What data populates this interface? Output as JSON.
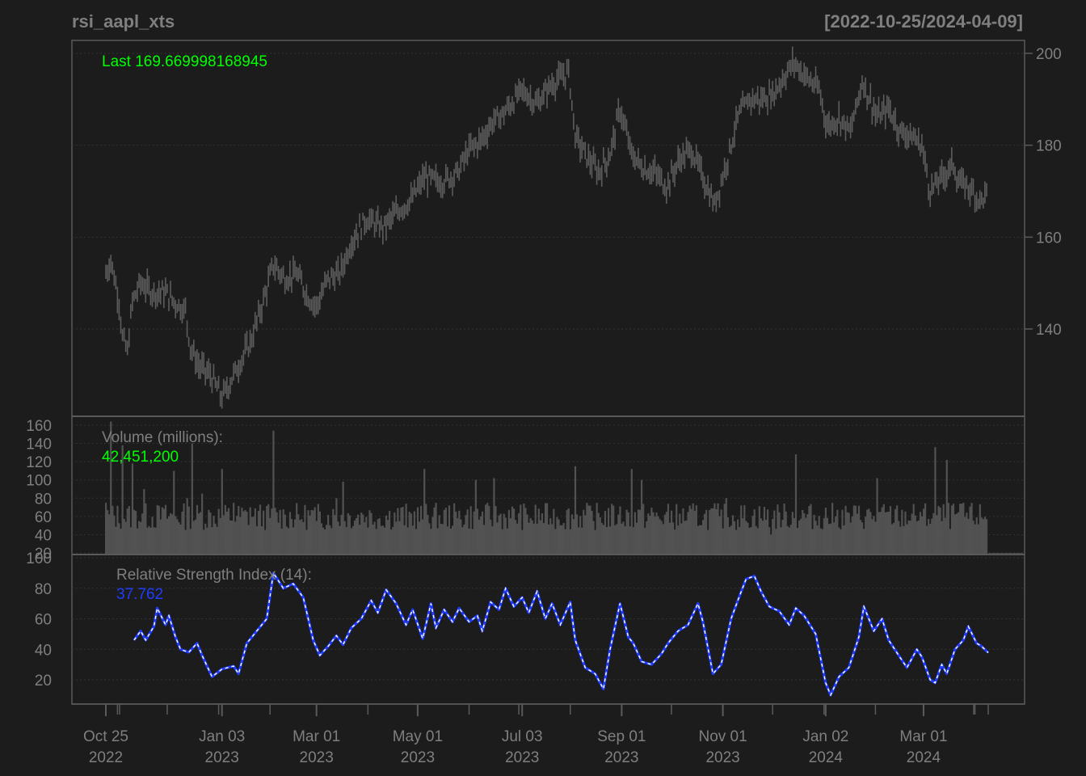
{
  "chart_data": {
    "type": "line",
    "title": "rsi_aapl_xts",
    "date_range": "[2022-10-25/2024-04-09]",
    "x_tick_labels": [
      {
        "month": "Oct 25",
        "year": "2022"
      },
      {
        "month": "Jan 03",
        "year": "2023"
      },
      {
        "month": "Mar 01",
        "year": "2023"
      },
      {
        "month": "May 01",
        "year": "2023"
      },
      {
        "month": "Jul 03",
        "year": "2023"
      },
      {
        "month": "Sep 01",
        "year": "2023"
      },
      {
        "month": "Nov 01",
        "year": "2023"
      },
      {
        "month": "Jan 02",
        "year": "2024"
      },
      {
        "month": "Mar 01",
        "year": "2024"
      }
    ],
    "x_tick_dates": [
      "2022-10-25",
      "2023-01-03",
      "2023-03-01",
      "2023-05-01",
      "2023-07-03",
      "2023-09-01",
      "2023-11-01",
      "2024-01-02",
      "2024-03-01"
    ],
    "panels": [
      {
        "name": "price",
        "type": "candlestick",
        "legend": "Last 169.669998168945",
        "ylim": [
          120,
          202
        ],
        "y_ticks": [
          140,
          160,
          180,
          200
        ],
        "points": [
          [
            "2022-10-25",
            152
          ],
          [
            "2022-10-28",
            155
          ],
          [
            "2022-11-02",
            146
          ],
          [
            "2022-11-04",
            138
          ],
          [
            "2022-11-07",
            135
          ],
          [
            "2022-11-10",
            146
          ],
          [
            "2022-11-15",
            150
          ],
          [
            "2022-11-22",
            148
          ],
          [
            "2022-11-30",
            148
          ],
          [
            "2022-12-05",
            146
          ],
          [
            "2022-12-12",
            144
          ],
          [
            "2022-12-15",
            136
          ],
          [
            "2022-12-20",
            132
          ],
          [
            "2022-12-27",
            130
          ],
          [
            "2023-01-03",
            125
          ],
          [
            "2023-01-10",
            130
          ],
          [
            "2023-01-20",
            137
          ],
          [
            "2023-01-27",
            145
          ],
          [
            "2023-02-03",
            154
          ],
          [
            "2023-02-10",
            151
          ],
          [
            "2023-02-17",
            152
          ],
          [
            "2023-02-24",
            147
          ],
          [
            "2023-03-01",
            145
          ],
          [
            "2023-03-08",
            151
          ],
          [
            "2023-03-15",
            152
          ],
          [
            "2023-03-22",
            159
          ],
          [
            "2023-03-31",
            164
          ],
          [
            "2023-04-10",
            162
          ],
          [
            "2023-04-20",
            166
          ],
          [
            "2023-04-27",
            168
          ],
          [
            "2023-05-05",
            173
          ],
          [
            "2023-05-15",
            172
          ],
          [
            "2023-05-25",
            174
          ],
          [
            "2023-06-01",
            179
          ],
          [
            "2023-06-08",
            181
          ],
          [
            "2023-06-15",
            185
          ],
          [
            "2023-06-22",
            187
          ],
          [
            "2023-07-03",
            192
          ],
          [
            "2023-07-12",
            189
          ],
          [
            "2023-07-20",
            193
          ],
          [
            "2023-07-31",
            196
          ],
          [
            "2023-08-04",
            182
          ],
          [
            "2023-08-10",
            178
          ],
          [
            "2023-08-18",
            174
          ],
          [
            "2023-08-25",
            178
          ],
          [
            "2023-08-31",
            188
          ],
          [
            "2023-09-07",
            178
          ],
          [
            "2023-09-14",
            175
          ],
          [
            "2023-09-21",
            174
          ],
          [
            "2023-09-28",
            171
          ],
          [
            "2023-10-06",
            177
          ],
          [
            "2023-10-13",
            179
          ],
          [
            "2023-10-20",
            173
          ],
          [
            "2023-10-27",
            167
          ],
          [
            "2023-11-03",
            176
          ],
          [
            "2023-11-10",
            186
          ],
          [
            "2023-11-17",
            190
          ],
          [
            "2023-11-24",
            190
          ],
          [
            "2023-12-01",
            191
          ],
          [
            "2023-12-08",
            195
          ],
          [
            "2023-12-14",
            198
          ],
          [
            "2023-12-21",
            195
          ],
          [
            "2023-12-29",
            192
          ],
          [
            "2024-01-03",
            184
          ],
          [
            "2024-01-10",
            186
          ],
          [
            "2024-01-17",
            183
          ],
          [
            "2024-01-24",
            194
          ],
          [
            "2024-01-31",
            188
          ],
          [
            "2024-02-02",
            186
          ],
          [
            "2024-02-09",
            188
          ],
          [
            "2024-02-16",
            183
          ],
          [
            "2024-02-23",
            182
          ],
          [
            "2024-02-29",
            180
          ],
          [
            "2024-03-05",
            170
          ],
          [
            "2024-03-12",
            173
          ],
          [
            "2024-03-19",
            176
          ],
          [
            "2024-03-22",
            172
          ],
          [
            "2024-03-28",
            171
          ],
          [
            "2024-04-04",
            168
          ],
          [
            "2024-04-09",
            169.67
          ]
        ]
      },
      {
        "name": "volume",
        "type": "bar",
        "legend_label": "Volume (millions):",
        "legend_value": "42,451,200",
        "ylim": [
          20,
          165
        ],
        "y_ticks": [
          20,
          40,
          60,
          80,
          100,
          120,
          140,
          160
        ],
        "points": [
          [
            "2022-10-25",
            75
          ],
          [
            "2022-10-28",
            164
          ],
          [
            "2022-11-04",
            138
          ],
          [
            "2022-11-10",
            118
          ],
          [
            "2022-11-17",
            90
          ],
          [
            "2022-11-28",
            70
          ],
          [
            "2022-12-05",
            110
          ],
          [
            "2022-12-13",
            80
          ],
          [
            "2022-12-16",
            140
          ],
          [
            "2022-12-22",
            85
          ],
          [
            "2023-01-03",
            112
          ],
          [
            "2023-01-10",
            75
          ],
          [
            "2023-01-20",
            70
          ],
          [
            "2023-02-03",
            154
          ],
          [
            "2023-02-10",
            62
          ],
          [
            "2023-02-20",
            57
          ],
          [
            "2023-03-01",
            55
          ],
          [
            "2023-03-13",
            80
          ],
          [
            "2023-03-17",
            98
          ],
          [
            "2023-03-29",
            62
          ],
          [
            "2023-04-10",
            50
          ],
          [
            "2023-04-25",
            48
          ],
          [
            "2023-05-05",
            112
          ],
          [
            "2023-05-15",
            52
          ],
          [
            "2023-05-25",
            58
          ],
          [
            "2023-06-05",
            100
          ],
          [
            "2023-06-16",
            102
          ],
          [
            "2023-06-26",
            58
          ],
          [
            "2023-07-10",
            52
          ],
          [
            "2023-07-20",
            58
          ],
          [
            "2023-08-04",
            115
          ],
          [
            "2023-08-15",
            55
          ],
          [
            "2023-08-30",
            62
          ],
          [
            "2023-09-07",
            112
          ],
          [
            "2023-09-13",
            100
          ],
          [
            "2023-09-25",
            55
          ],
          [
            "2023-10-05",
            50
          ],
          [
            "2023-10-20",
            56
          ],
          [
            "2023-10-30",
            60
          ],
          [
            "2023-11-03",
            80
          ],
          [
            "2023-11-15",
            55
          ],
          [
            "2023-11-30",
            40
          ],
          [
            "2023-12-15",
            128
          ],
          [
            "2023-12-28",
            50
          ],
          [
            "2024-01-08",
            60
          ],
          [
            "2024-01-18",
            60
          ],
          [
            "2024-02-02",
            102
          ],
          [
            "2024-02-15",
            55
          ],
          [
            "2024-02-29",
            60
          ],
          [
            "2024-03-08",
            136
          ],
          [
            "2024-03-15",
            122
          ],
          [
            "2024-03-25",
            75
          ],
          [
            "2024-04-09",
            42
          ]
        ]
      },
      {
        "name": "rsi",
        "type": "line",
        "legend_label": "Relative Strength Index (14):",
        "legend_value": "37.762",
        "ylim": [
          5,
          100
        ],
        "y_ticks": [
          20,
          40,
          60,
          80,
          100
        ],
        "color": "#1f3cff",
        "points": [
          [
            "2022-11-11",
            46
          ],
          [
            "2022-11-15",
            52
          ],
          [
            "2022-11-18",
            46
          ],
          [
            "2022-11-23",
            55
          ],
          [
            "2022-11-25",
            67
          ],
          [
            "2022-11-30",
            56
          ],
          [
            "2022-12-02",
            62
          ],
          [
            "2022-12-06",
            48
          ],
          [
            "2022-12-09",
            40
          ],
          [
            "2022-12-14",
            38
          ],
          [
            "2022-12-19",
            44
          ],
          [
            "2022-12-22",
            36
          ],
          [
            "2022-12-28",
            22
          ],
          [
            "2023-01-03",
            27
          ],
          [
            "2023-01-10",
            29
          ],
          [
            "2023-01-13",
            24
          ],
          [
            "2023-01-18",
            44
          ],
          [
            "2023-01-24",
            52
          ],
          [
            "2023-01-30",
            60
          ],
          [
            "2023-02-03",
            90
          ],
          [
            "2023-02-09",
            80
          ],
          [
            "2023-02-15",
            83
          ],
          [
            "2023-02-21",
            74
          ],
          [
            "2023-02-27",
            46
          ],
          [
            "2023-03-03",
            36
          ],
          [
            "2023-03-08",
            42
          ],
          [
            "2023-03-13",
            49
          ],
          [
            "2023-03-17",
            43
          ],
          [
            "2023-03-22",
            54
          ],
          [
            "2023-03-28",
            60
          ],
          [
            "2023-04-03",
            72
          ],
          [
            "2023-04-07",
            64
          ],
          [
            "2023-04-12",
            79
          ],
          [
            "2023-04-18",
            70
          ],
          [
            "2023-04-24",
            56
          ],
          [
            "2023-04-28",
            66
          ],
          [
            "2023-05-04",
            47
          ],
          [
            "2023-05-09",
            70
          ],
          [
            "2023-05-12",
            54
          ],
          [
            "2023-05-17",
            66
          ],
          [
            "2023-05-22",
            58
          ],
          [
            "2023-05-26",
            67
          ],
          [
            "2023-06-01",
            58
          ],
          [
            "2023-06-06",
            62
          ],
          [
            "2023-06-09",
            52
          ],
          [
            "2023-06-14",
            71
          ],
          [
            "2023-06-19",
            66
          ],
          [
            "2023-06-23",
            80
          ],
          [
            "2023-06-28",
            68
          ],
          [
            "2023-07-03",
            74
          ],
          [
            "2023-07-07",
            64
          ],
          [
            "2023-07-12",
            78
          ],
          [
            "2023-07-17",
            60
          ],
          [
            "2023-07-21",
            70
          ],
          [
            "2023-07-26",
            56
          ],
          [
            "2023-08-01",
            71
          ],
          [
            "2023-08-04",
            46
          ],
          [
            "2023-08-10",
            28
          ],
          [
            "2023-08-16",
            24
          ],
          [
            "2023-08-21",
            14
          ],
          [
            "2023-08-25",
            40
          ],
          [
            "2023-08-31",
            70
          ],
          [
            "2023-09-05",
            48
          ],
          [
            "2023-09-08",
            44
          ],
          [
            "2023-09-13",
            32
          ],
          [
            "2023-09-19",
            30
          ],
          [
            "2023-09-25",
            37
          ],
          [
            "2023-09-29",
            44
          ],
          [
            "2023-10-05",
            52
          ],
          [
            "2023-10-11",
            56
          ],
          [
            "2023-10-17",
            70
          ],
          [
            "2023-10-20",
            58
          ],
          [
            "2023-10-26",
            24
          ],
          [
            "2023-10-31",
            30
          ],
          [
            "2023-11-06",
            60
          ],
          [
            "2023-11-10",
            72
          ],
          [
            "2023-11-15",
            86
          ],
          [
            "2023-11-20",
            88
          ],
          [
            "2023-11-24",
            78
          ],
          [
            "2023-11-29",
            68
          ],
          [
            "2023-12-05",
            65
          ],
          [
            "2023-12-11",
            56
          ],
          [
            "2023-12-15",
            67
          ],
          [
            "2023-12-20",
            62
          ],
          [
            "2023-12-27",
            50
          ],
          [
            "2024-01-02",
            18
          ],
          [
            "2024-01-05",
            10
          ],
          [
            "2024-01-10",
            22
          ],
          [
            "2024-01-16",
            28
          ],
          [
            "2024-01-22",
            48
          ],
          [
            "2024-01-25",
            68
          ],
          [
            "2024-01-31",
            52
          ],
          [
            "2024-02-05",
            60
          ],
          [
            "2024-02-09",
            46
          ],
          [
            "2024-02-15",
            36
          ],
          [
            "2024-02-20",
            28
          ],
          [
            "2024-02-26",
            40
          ],
          [
            "2024-02-29",
            35
          ],
          [
            "2024-03-05",
            20
          ],
          [
            "2024-03-08",
            18
          ],
          [
            "2024-03-12",
            30
          ],
          [
            "2024-03-15",
            24
          ],
          [
            "2024-03-20",
            40
          ],
          [
            "2024-03-25",
            46
          ],
          [
            "2024-03-28",
            55
          ],
          [
            "2024-04-02",
            44
          ],
          [
            "2024-04-05",
            42
          ],
          [
            "2024-04-09",
            37.762
          ]
        ]
      }
    ],
    "grid": true,
    "colors": {
      "background": "#1c1c1c",
      "frame": "#5a5a5a",
      "grid": "#333333",
      "price": "#5c5c5c",
      "volume": "#525252",
      "text": "#7f7f7f",
      "last_value": "#00ff00",
      "rsi_line": "#1f3cff",
      "rsi_dash": "#ffffff"
    }
  }
}
